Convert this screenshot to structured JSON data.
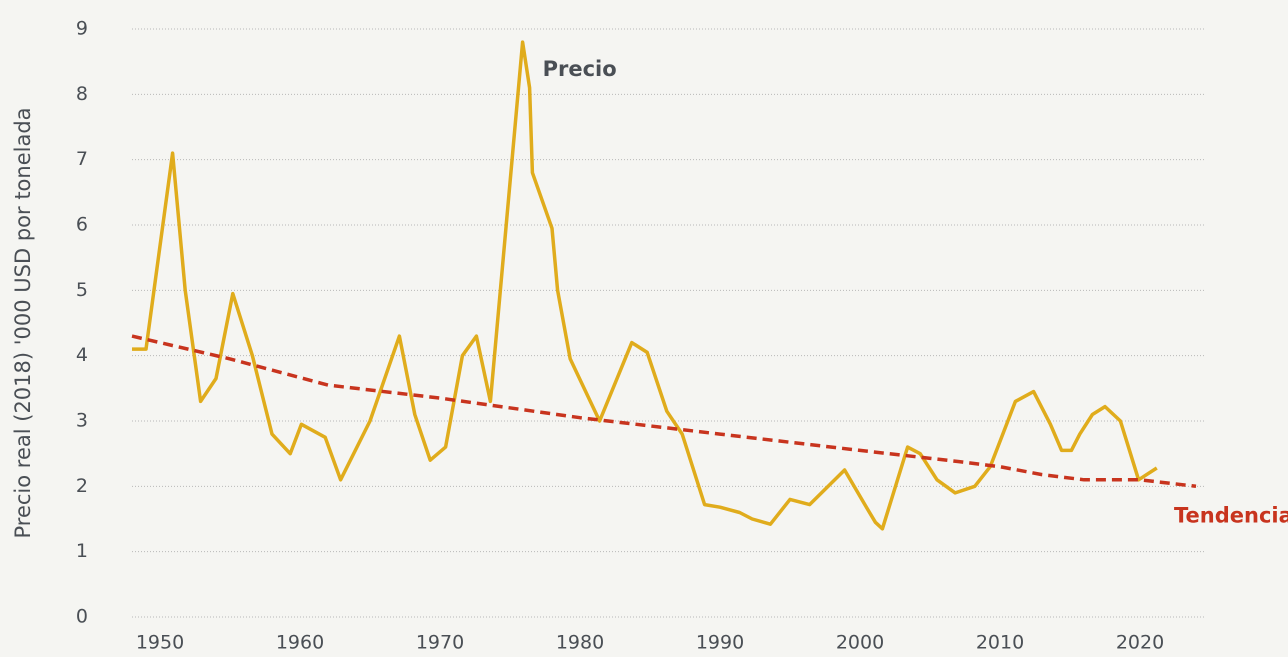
{
  "chart_data": {
    "type": "line",
    "y_label": "Precio real (2018) '000 USD por tonelada",
    "xlim": [
      1948,
      2025
    ],
    "xticks": [
      1950,
      1960,
      1970,
      1980,
      1990,
      2000,
      2010,
      2020
    ],
    "ylim": [
      0,
      9
    ],
    "yticks": [
      0,
      1,
      2,
      3,
      4,
      5,
      6,
      7,
      8,
      9
    ],
    "grid": true,
    "series": [
      {
        "name": "Precio",
        "color": "#e0ac1c",
        "style": "solid",
        "x": [
          1948,
          1949,
          1950.9,
          1951.8,
          1952.9,
          1954,
          1955.2,
          1956.6,
          1958,
          1959.3,
          1960.1,
          1961.8,
          1962.9,
          1965,
          1967.1,
          1968.2,
          1969.3,
          1970.4,
          1971.6,
          1972.6,
          1973.6,
          1975.9,
          1976.4,
          1976.6,
          1978,
          1978.4,
          1979.3,
          1981.4,
          1983.7,
          1984.8,
          1986.2,
          1987.3,
          1988.9,
          1990,
          1991.4,
          1992.3,
          1993.6,
          1995,
          1996.4,
          1998.9,
          2000.4,
          2001.1,
          2001.6,
          2003.4,
          2004.3,
          2005.5,
          2006.8,
          2008.2,
          2009.3,
          2010.2,
          2011.1,
          2012.4,
          2013.6,
          2014.4,
          2015.1,
          2015.7,
          2016.6,
          2017.5,
          2018.6,
          2019.9,
          2021.2
        ],
        "values": [
          4.1,
          4.1,
          7.1,
          5.0,
          3.3,
          3.65,
          4.95,
          4.0,
          2.8,
          2.5,
          2.95,
          2.75,
          2.1,
          3.0,
          4.3,
          3.1,
          2.4,
          2.6,
          4.0,
          4.3,
          3.3,
          8.8,
          8.1,
          6.8,
          5.95,
          5.0,
          3.95,
          3.0,
          4.2,
          4.05,
          3.15,
          2.8,
          1.72,
          1.68,
          1.6,
          1.5,
          1.42,
          1.8,
          1.72,
          2.25,
          1.7,
          1.45,
          1.35,
          2.6,
          2.5,
          2.1,
          1.9,
          2.0,
          2.3,
          2.8,
          3.3,
          3.45,
          2.95,
          2.55,
          2.55,
          2.8,
          3.1,
          3.22,
          3.0,
          2.1,
          2.28
        ]
      },
      {
        "name": "Tendencia",
        "color": "#c8341e",
        "style": "dashed",
        "x": [
          1948,
          1955,
          1962,
          1970,
          1980,
          1990,
          2000,
          2007,
          2010,
          2013,
          2016,
          2020,
          2024
        ],
        "values": [
          4.3,
          3.95,
          3.55,
          3.35,
          3.05,
          2.8,
          2.55,
          2.38,
          2.3,
          2.18,
          2.1,
          2.1,
          2.0
        ]
      }
    ]
  }
}
